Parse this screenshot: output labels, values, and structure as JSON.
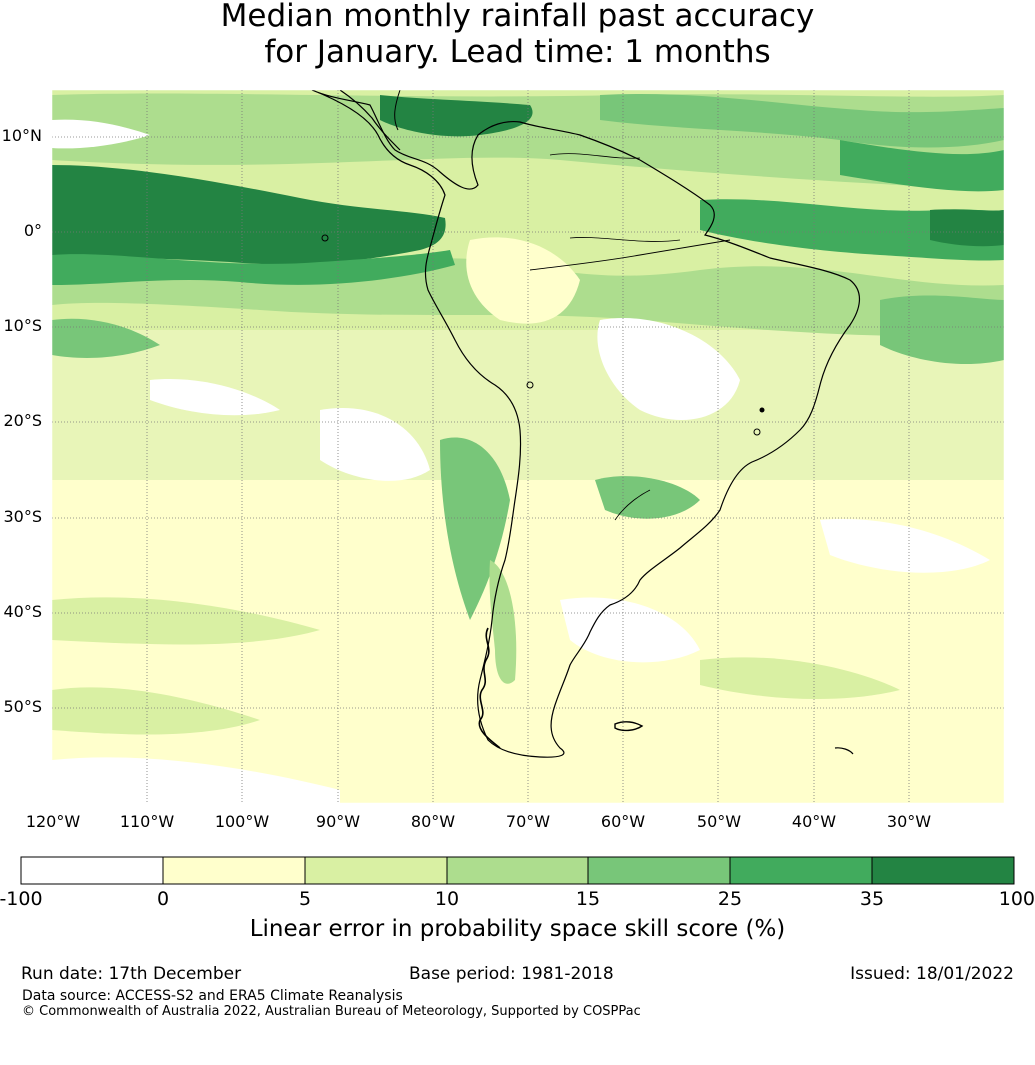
{
  "title": {
    "line1": "Median monthly rainfall past accuracy",
    "line2": "for January. Lead time: 1 months"
  },
  "map": {
    "latitude_labels": [
      "10°N",
      "0°",
      "10°S",
      "20°S",
      "30°S",
      "40°S",
      "50°S"
    ],
    "longitude_labels": [
      "120°W",
      "110°W",
      "100°W",
      "90°W",
      "80°W",
      "70°W",
      "60°W",
      "50°W",
      "40°W",
      "30°W"
    ],
    "extent": {
      "lon_min": -125,
      "lon_max": -25,
      "lat_min": -60,
      "lat_max": 15
    }
  },
  "colorbar": {
    "ticks": [
      "-100",
      "0",
      "5",
      "10",
      "15",
      "25",
      "35",
      "100"
    ],
    "colors": [
      "#ffffff",
      "#ffffcc",
      "#d9f0a3",
      "#addd8e",
      "#78c679",
      "#41ab5d",
      "#238443"
    ],
    "label": "Linear error in probability space skill score (%)"
  },
  "footer": {
    "run_date": "Run date: 17th December",
    "base_period": "Base period: 1981-2018",
    "issued": "Issued: 18/01/2022",
    "data_source": "Data source: ACCESS-S2 and ERA5 Climate Reanalysis",
    "copyright": "© Commonwealth of Australia 2022, Australian Bureau of Meteorology, Supported by COSPPac"
  }
}
